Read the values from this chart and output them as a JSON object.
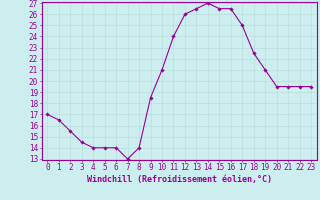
{
  "x": [
    0,
    1,
    2,
    3,
    4,
    5,
    6,
    7,
    8,
    9,
    10,
    11,
    12,
    13,
    14,
    15,
    16,
    17,
    18,
    19,
    20,
    21,
    22,
    23
  ],
  "y": [
    17.0,
    16.5,
    15.5,
    14.5,
    14.0,
    14.0,
    14.0,
    13.0,
    14.0,
    18.5,
    21.0,
    24.0,
    26.0,
    26.5,
    27.0,
    26.5,
    26.5,
    25.0,
    22.5,
    21.0,
    19.5,
    19.5,
    19.5,
    19.5
  ],
  "xlabel": "Windchill (Refroidissement éolien,°C)",
  "ylim": [
    13,
    27
  ],
  "xlim": [
    -0.5,
    23.5
  ],
  "yticks": [
    13,
    14,
    15,
    16,
    17,
    18,
    19,
    20,
    21,
    22,
    23,
    24,
    25,
    26,
    27
  ],
  "xticks": [
    0,
    1,
    2,
    3,
    4,
    5,
    6,
    7,
    8,
    9,
    10,
    11,
    12,
    13,
    14,
    15,
    16,
    17,
    18,
    19,
    20,
    21,
    22,
    23
  ],
  "line_color": "#990099",
  "marker_color": "#990099",
  "bg_color": "#cceeee",
  "grid_color": "#bbdddd",
  "axis_color": "#990099",
  "tick_label_color": "#990099",
  "xlabel_color": "#990099",
  "xlabel_fontsize": 6.0,
  "tick_fontsize": 5.5,
  "marker": "D",
  "marker_size": 1.8,
  "line_width": 0.8
}
